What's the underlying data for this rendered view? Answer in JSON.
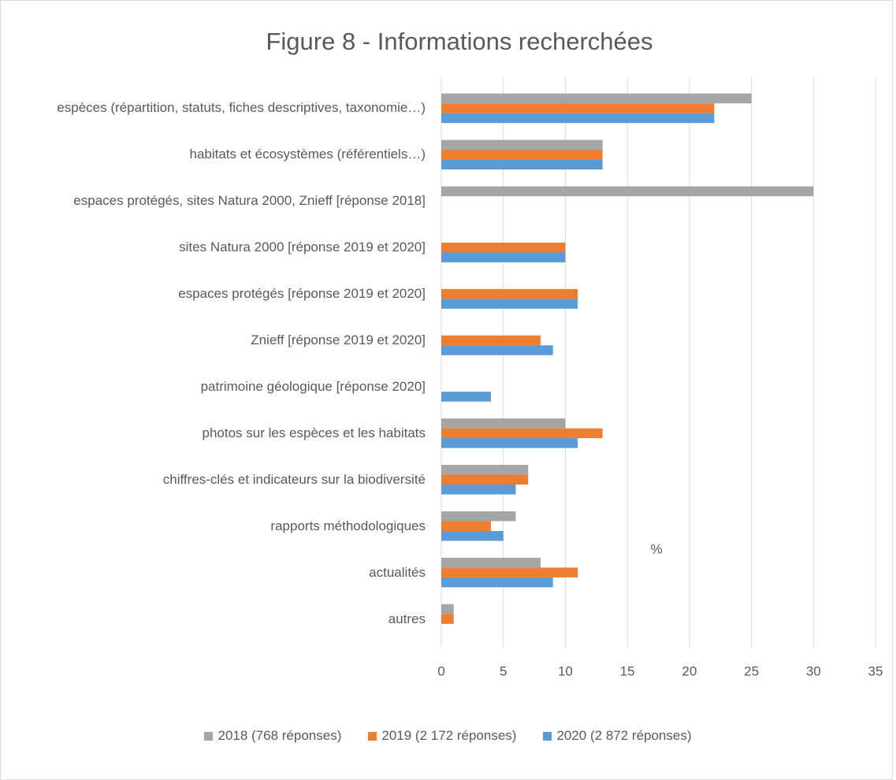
{
  "chart_data": {
    "type": "hbar",
    "title": "Figure 8 - Informations recherchées",
    "x_label": "%",
    "categories": [
      "espèces (répartition, statuts, fiches descriptives, taxonomie…)",
      "habitats et écosystèmes (référentiels…)",
      "espaces protégés, sites Natura 2000, Znieff [réponse 2018]",
      "sites Natura 2000 [réponse 2019 et 2020]",
      "espaces protégés [réponse 2019 et 2020]",
      "Znieff [réponse 2019 et 2020]",
      "patrimoine géologique [réponse 2020]",
      "photos sur les espèces et les habitats",
      "chiffres-clés et indicateurs sur la biodiversité",
      "rapports méthodologiques",
      "actualités",
      "autres"
    ],
    "series": [
      {
        "name": "2018 (768 réponses)",
        "color": "#a5a5a5",
        "values": [
          25,
          13,
          30,
          null,
          null,
          null,
          null,
          10,
          7,
          6,
          8,
          1
        ]
      },
      {
        "name": "2019 (2 172 réponses)",
        "color": "#ed7d31",
        "values": [
          22,
          13,
          null,
          10,
          11,
          8,
          null,
          13,
          7,
          4,
          11,
          1
        ]
      },
      {
        "name": "2020 (2 872 réponses)",
        "color": "#5b9bd5",
        "values": [
          22,
          13,
          null,
          10,
          11,
          9,
          4,
          11,
          6,
          5,
          9,
          null
        ]
      }
    ],
    "xlim": [
      0,
      35
    ],
    "xticks": [
      0,
      5,
      10,
      15,
      20,
      25,
      30,
      35
    ],
    "grid": true,
    "legend": "bottom"
  }
}
